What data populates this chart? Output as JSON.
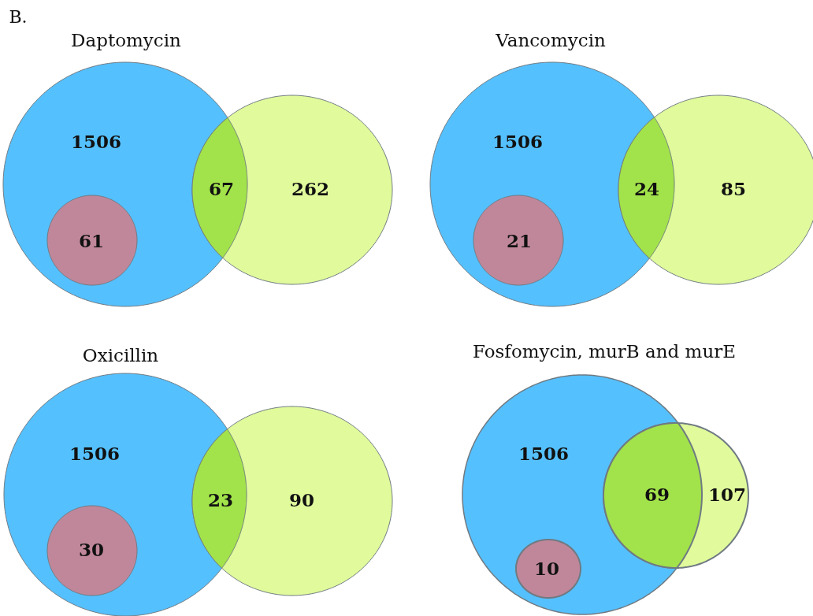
{
  "chart_data": [
    {
      "type": "other",
      "title": "Daptomycin",
      "annotations": [
        "B."
      ],
      "values": [
        1506,
        67,
        262,
        61
      ],
      "colors": [
        "#55c0fe",
        "#a2e24a",
        "#e0fa9c",
        "#c0879a"
      ],
      "data_labels": true
    },
    {
      "type": "other",
      "title": "Vancomycin",
      "values": [
        1506,
        24,
        85,
        21
      ],
      "colors": [
        "#55c0fe",
        "#a2e24a",
        "#e0fa9c",
        "#c0879a"
      ],
      "data_labels": true
    },
    {
      "type": "other",
      "title": "Oxicillin",
      "values": [
        1506,
        23,
        90,
        30
      ],
      "colors": [
        "#55c0fe",
        "#a2e24a",
        "#e0fa9c",
        "#c0879a"
      ],
      "data_labels": true
    },
    {
      "type": "other",
      "title": "Fosfomycin, murB and murE",
      "values": [
        1506,
        69,
        107,
        10
      ],
      "colors": [
        "#55c0fe",
        "#a2e24a",
        "#e0fa9c",
        "#c0879a"
      ],
      "data_labels": true
    }
  ]
}
